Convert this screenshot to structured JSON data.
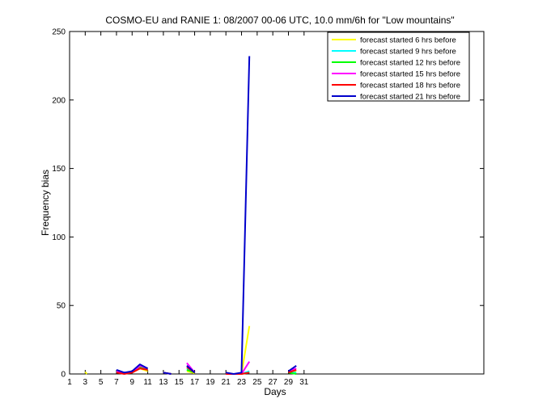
{
  "chart_data": {
    "type": "line",
    "title": "COSMO-EU and RANIE 1: 08/2007 00-06 UTC, 10.0 mm/6h for \"Low mountains\"",
    "xlabel": "Days",
    "ylabel": "Frequency bias",
    "xlim": [
      1,
      54
    ],
    "ylim": [
      0,
      250
    ],
    "xticks": [
      1,
      3,
      5,
      7,
      9,
      11,
      13,
      15,
      17,
      19,
      21,
      23,
      25,
      27,
      29,
      31
    ],
    "yticks": [
      0,
      50,
      100,
      150,
      200,
      250
    ],
    "grid": false,
    "legend_position": "top-right",
    "series": [
      {
        "name": "forecast started 6 hrs before",
        "color": "#ffff00",
        "segments": [
          [
            [
              3,
              1.5
            ],
            [
              3.2,
              0
            ]
          ],
          [
            [
              7,
              2
            ],
            [
              8,
              0.5
            ],
            [
              9,
              1
            ],
            [
              10,
              4
            ],
            [
              11,
              2
            ]
          ],
          [
            [
              13,
              1
            ],
            [
              14,
              0
            ]
          ],
          [
            [
              16,
              2
            ],
            [
              17,
              0.5
            ]
          ],
          [
            [
              21,
              0.5
            ],
            [
              22,
              0
            ],
            [
              23,
              0
            ],
            [
              24,
              35
            ]
          ],
          [
            [
              29,
              1
            ],
            [
              30,
              2
            ]
          ]
        ]
      },
      {
        "name": "forecast started 9 hrs before",
        "color": "#00ffff",
        "segments": [
          [
            [
              7,
              2
            ],
            [
              8,
              1
            ],
            [
              9,
              1
            ],
            [
              10,
              5
            ],
            [
              11,
              3
            ]
          ],
          [
            [
              13,
              1
            ],
            [
              14,
              0
            ]
          ],
          [
            [
              16,
              4
            ],
            [
              17,
              1
            ]
          ],
          [
            [
              21,
              0
            ],
            [
              22,
              0
            ],
            [
              23,
              0
            ],
            [
              24,
              2
            ]
          ],
          [
            [
              29,
              1
            ],
            [
              30,
              1
            ]
          ]
        ]
      },
      {
        "name": "forecast started 12 hrs before",
        "color": "#00ff00",
        "segments": [
          [
            [
              7,
              2
            ],
            [
              8,
              1
            ],
            [
              9,
              1
            ],
            [
              10,
              5
            ],
            [
              11,
              3
            ]
          ],
          [
            [
              13,
              1
            ],
            [
              14,
              0
            ]
          ],
          [
            [
              16,
              3
            ],
            [
              17,
              1
            ]
          ],
          [
            [
              21,
              0
            ],
            [
              22,
              0
            ],
            [
              23,
              0
            ],
            [
              24,
              1
            ]
          ],
          [
            [
              29,
              1
            ],
            [
              30,
              0
            ]
          ]
        ]
      },
      {
        "name": "forecast started 15 hrs before",
        "color": "#ff00ff",
        "segments": [
          [
            [
              7,
              2
            ],
            [
              8,
              1
            ],
            [
              9,
              1
            ],
            [
              10,
              6
            ],
            [
              11,
              4
            ]
          ],
          [
            [
              13,
              1
            ],
            [
              14,
              0
            ]
          ],
          [
            [
              16,
              8
            ],
            [
              17,
              1
            ]
          ],
          [
            [
              21,
              0
            ],
            [
              22,
              0
            ],
            [
              23,
              0
            ],
            [
              24,
              9
            ]
          ],
          [
            [
              29,
              2
            ],
            [
              30,
              4
            ]
          ]
        ]
      },
      {
        "name": "forecast started 18 hrs before",
        "color": "#ff0000",
        "segments": [
          [
            [
              7,
              1
            ],
            [
              8,
              0
            ],
            [
              9,
              1
            ],
            [
              10,
              4
            ],
            [
              11,
              3
            ]
          ],
          [
            [
              13,
              1
            ],
            [
              14,
              0
            ]
          ],
          [
            [
              16,
              5
            ],
            [
              17,
              1
            ]
          ],
          [
            [
              21,
              0
            ],
            [
              22,
              0
            ],
            [
              23,
              0
            ],
            [
              24,
              1
            ]
          ],
          [
            [
              29,
              1
            ],
            [
              30,
              3
            ]
          ]
        ]
      },
      {
        "name": "forecast started 21 hrs before",
        "color": "#0000cc",
        "segments": [
          [
            [
              7,
              3
            ],
            [
              8,
              1
            ],
            [
              9,
              2
            ],
            [
              10,
              7
            ],
            [
              11,
              4
            ]
          ],
          [
            [
              13,
              1
            ],
            [
              14,
              0
            ]
          ],
          [
            [
              16,
              6
            ],
            [
              17,
              1
            ]
          ],
          [
            [
              21,
              1
            ],
            [
              22,
              0
            ],
            [
              23,
              1
            ],
            [
              24,
              232
            ]
          ],
          [
            [
              29,
              2
            ],
            [
              30,
              6
            ]
          ]
        ]
      }
    ]
  }
}
